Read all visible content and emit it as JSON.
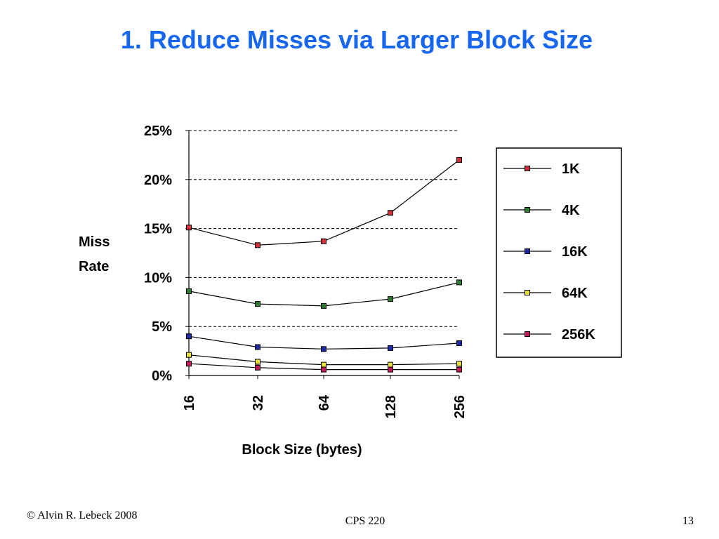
{
  "slide": {
    "title": "1. Reduce Misses via Larger Block Size",
    "footer_left": "© Alvin R. Lebeck 2008",
    "footer_center": "CPS 220",
    "footer_right": "13",
    "title_color": "#1666ef"
  },
  "chart_data": {
    "type": "line",
    "title": "",
    "xlabel": "Block Size (bytes)",
    "ylabel_lines": [
      "Miss",
      "Rate"
    ],
    "categories": [
      "16",
      "32",
      "64",
      "128",
      "256"
    ],
    "ylim": [
      0,
      25
    ],
    "yticks": [
      "0%",
      "5%",
      "10%",
      "15%",
      "20%",
      "25%"
    ],
    "grid": "dashed horizontal",
    "legend_position": "right",
    "series": [
      {
        "name": "1K",
        "color": "#d32f3a",
        "values": [
          15.1,
          13.3,
          13.7,
          16.6,
          22.0
        ]
      },
      {
        "name": "4K",
        "color": "#2e7d32",
        "values": [
          8.6,
          7.3,
          7.1,
          7.8,
          9.5
        ]
      },
      {
        "name": "16K",
        "color": "#1e2aa8",
        "values": [
          4.0,
          2.9,
          2.7,
          2.8,
          3.3
        ]
      },
      {
        "name": "64K",
        "color": "#e8e23a",
        "values": [
          2.1,
          1.4,
          1.1,
          1.1,
          1.2
        ]
      },
      {
        "name": "256K",
        "color": "#c2185b",
        "values": [
          1.2,
          0.8,
          0.6,
          0.6,
          0.6
        ]
      }
    ]
  }
}
